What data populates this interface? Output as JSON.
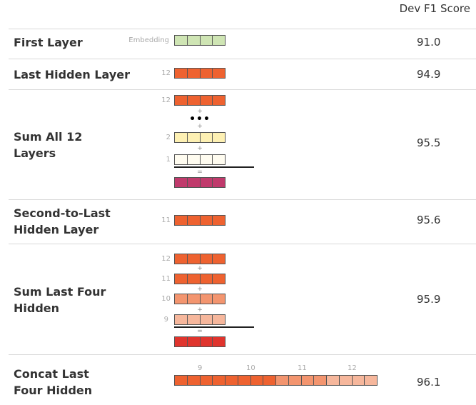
{
  "header": {
    "score_title": "Dev F1 Score"
  },
  "colors": {
    "embedding": "#cfe5b4",
    "layer12": "#ee6230",
    "layer11": "#ee6230",
    "layer10": "#f3956f",
    "layer9": "#f6b79c",
    "layer2": "#fdf0b3",
    "layer1": "#fffcf0",
    "sum_all": "#c03a6c",
    "sum_four": "#e0342d"
  },
  "rows": [
    {
      "label": "First Layer",
      "score": "91.0",
      "num": "Embedding"
    },
    {
      "label": "Last Hidden Layer",
      "score": "94.9",
      "num": "12"
    },
    {
      "label": "Sum All 12 Layers",
      "label_line1": "Sum All 12",
      "label_line2": "Layers",
      "score": "95.5",
      "nums": [
        "12",
        "2",
        "1"
      ],
      "plus": "+",
      "equals": "=",
      "ellipsis": "•••"
    },
    {
      "label": "Second-to-Last Hidden Layer",
      "label_line1": "Second-to-Last",
      "label_line2": "Hidden Layer",
      "score": "95.6",
      "num": "11"
    },
    {
      "label": "Sum Last Four Hidden",
      "label_line1": "Sum Last Four",
      "label_line2": "Hidden",
      "score": "95.9",
      "nums": [
        "12",
        "11",
        "10",
        "9"
      ],
      "plus": "+",
      "equals": "="
    },
    {
      "label": "Concat Last Four Hidden",
      "label_line1": "Concat Last",
      "label_line2": "Four Hidden",
      "score": "96.1",
      "nums": [
        "9",
        "10",
        "11",
        "12"
      ]
    }
  ]
}
